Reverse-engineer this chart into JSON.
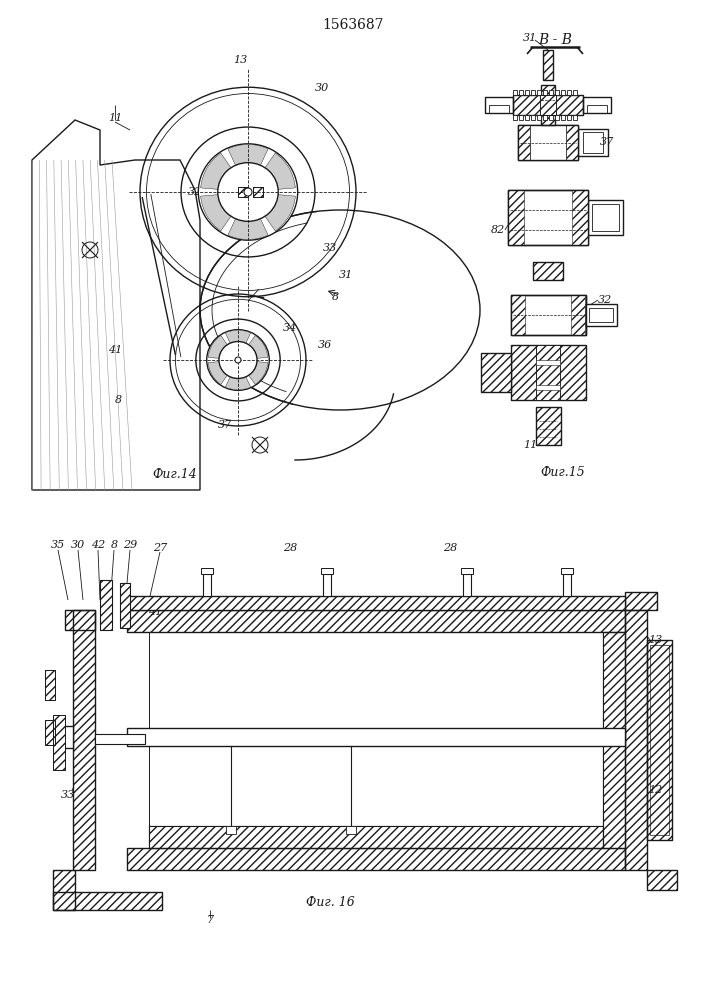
{
  "title": "1563687",
  "bg_color": "#ffffff",
  "line_color": "#1a1a1a",
  "fig14_caption": "Фиг.14",
  "fig15_caption": "Фиг.15",
  "fig16_caption": "Фиг. 16",
  "section_label": "B - B"
}
